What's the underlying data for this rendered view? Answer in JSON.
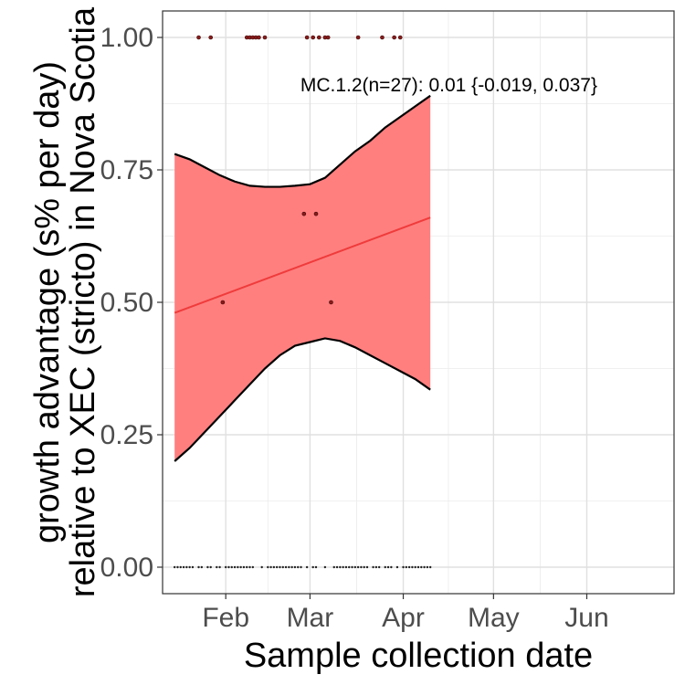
{
  "chart_data": {
    "type": "scatter",
    "title": "",
    "xlabel": "Sample collection date",
    "ylabel_lines": [
      "growth advantage (s% per day)",
      "relative to XEC (stricto) in Nova Scotia"
    ],
    "x_axis_type": "date",
    "xlim": [
      "2025-01-11",
      "2025-06-30"
    ],
    "ylim": [
      -0.05,
      1.05
    ],
    "x_ticks": [
      {
        "date": "2025-02-01",
        "label": "Feb"
      },
      {
        "date": "2025-03-01",
        "label": "Mar"
      },
      {
        "date": "2025-04-01",
        "label": "Apr"
      },
      {
        "date": "2025-05-01",
        "label": "May"
      },
      {
        "date": "2025-06-01",
        "label": "Jun"
      }
    ],
    "y_ticks": [
      {
        "value": 0.0,
        "label": "0.00"
      },
      {
        "value": 0.25,
        "label": "0.25"
      },
      {
        "value": 0.5,
        "label": "0.50"
      },
      {
        "value": 0.75,
        "label": "0.75"
      },
      {
        "value": 1.0,
        "label": "1.00"
      }
    ],
    "grid": true,
    "annotation": {
      "text": "MC.1.2(n=27): 0.01 {-0.019, 0.037}",
      "x": "2025-03-01",
      "y": 0.91
    },
    "fit_line": {
      "color": "#f03b3b",
      "points": [
        {
          "date": "2025-01-15",
          "y": 0.48
        },
        {
          "date": "2025-04-10",
          "y": 0.66
        }
      ]
    },
    "confidence_band": {
      "fill": "#ff7f7f",
      "stroke": "#000000",
      "upper": [
        {
          "date": "2025-01-15",
          "y": 0.78
        },
        {
          "date": "2025-01-20",
          "y": 0.77
        },
        {
          "date": "2025-01-25",
          "y": 0.755
        },
        {
          "date": "2025-01-30",
          "y": 0.74
        },
        {
          "date": "2025-02-04",
          "y": 0.728
        },
        {
          "date": "2025-02-09",
          "y": 0.72
        },
        {
          "date": "2025-02-14",
          "y": 0.718
        },
        {
          "date": "2025-02-19",
          "y": 0.718
        },
        {
          "date": "2025-02-24",
          "y": 0.72
        },
        {
          "date": "2025-03-01",
          "y": 0.723
        },
        {
          "date": "2025-03-06",
          "y": 0.735
        },
        {
          "date": "2025-03-11",
          "y": 0.76
        },
        {
          "date": "2025-03-16",
          "y": 0.785
        },
        {
          "date": "2025-03-21",
          "y": 0.805
        },
        {
          "date": "2025-03-26",
          "y": 0.83
        },
        {
          "date": "2025-03-31",
          "y": 0.85
        },
        {
          "date": "2025-04-05",
          "y": 0.87
        },
        {
          "date": "2025-04-10",
          "y": 0.89
        }
      ],
      "lower": [
        {
          "date": "2025-01-15",
          "y": 0.2
        },
        {
          "date": "2025-01-20",
          "y": 0.225
        },
        {
          "date": "2025-01-25",
          "y": 0.255
        },
        {
          "date": "2025-01-30",
          "y": 0.285
        },
        {
          "date": "2025-02-04",
          "y": 0.315
        },
        {
          "date": "2025-02-09",
          "y": 0.345
        },
        {
          "date": "2025-02-14",
          "y": 0.375
        },
        {
          "date": "2025-02-19",
          "y": 0.4
        },
        {
          "date": "2025-02-24",
          "y": 0.418
        },
        {
          "date": "2025-03-01",
          "y": 0.425
        },
        {
          "date": "2025-03-06",
          "y": 0.432
        },
        {
          "date": "2025-03-11",
          "y": 0.427
        },
        {
          "date": "2025-03-16",
          "y": 0.415
        },
        {
          "date": "2025-03-21",
          "y": 0.4
        },
        {
          "date": "2025-03-26",
          "y": 0.385
        },
        {
          "date": "2025-03-31",
          "y": 0.37
        },
        {
          "date": "2025-04-05",
          "y": 0.355
        },
        {
          "date": "2025-04-10",
          "y": 0.335
        }
      ]
    },
    "series": [
      {
        "name": "",
        "color": "#8b1a1a",
        "points": [
          {
            "date": "2025-01-23",
            "y": 1.0
          },
          {
            "date": "2025-01-27",
            "y": 1.0
          },
          {
            "date": "2025-02-08",
            "y": 1.0
          },
          {
            "date": "2025-02-09",
            "y": 1.0
          },
          {
            "date": "2025-02-10",
            "y": 1.0
          },
          {
            "date": "2025-02-11",
            "y": 1.0
          },
          {
            "date": "2025-02-12",
            "y": 1.0
          },
          {
            "date": "2025-02-14",
            "y": 1.0
          },
          {
            "date": "2025-02-28",
            "y": 1.0
          },
          {
            "date": "2025-03-02",
            "y": 1.0
          },
          {
            "date": "2025-03-04",
            "y": 1.0
          },
          {
            "date": "2025-03-06",
            "y": 1.0
          },
          {
            "date": "2025-03-07",
            "y": 1.0
          },
          {
            "date": "2025-03-17",
            "y": 1.0
          },
          {
            "date": "2025-03-25",
            "y": 1.0
          },
          {
            "date": "2025-03-29",
            "y": 1.0
          },
          {
            "date": "2025-03-31",
            "y": 1.0
          },
          {
            "date": "2025-02-27",
            "y": 0.667
          },
          {
            "date": "2025-03-03",
            "y": 0.667
          },
          {
            "date": "2025-01-31",
            "y": 0.5
          },
          {
            "date": "2025-03-08",
            "y": 0.5
          },
          {
            "date": "2025-01-15",
            "y": 0.0
          },
          {
            "date": "2025-01-16",
            "y": 0.0
          },
          {
            "date": "2025-01-17",
            "y": 0.0
          },
          {
            "date": "2025-01-18",
            "y": 0.0
          },
          {
            "date": "2025-01-19",
            "y": 0.0
          },
          {
            "date": "2025-01-20",
            "y": 0.0
          },
          {
            "date": "2025-01-21",
            "y": 0.0
          },
          {
            "date": "2025-01-23",
            "y": 0.0
          },
          {
            "date": "2025-01-24",
            "y": 0.0
          },
          {
            "date": "2025-01-26",
            "y": 0.0
          },
          {
            "date": "2025-01-27",
            "y": 0.0
          },
          {
            "date": "2025-01-29",
            "y": 0.0
          },
          {
            "date": "2025-01-30",
            "y": 0.0
          },
          {
            "date": "2025-02-01",
            "y": 0.0
          },
          {
            "date": "2025-02-02",
            "y": 0.0
          },
          {
            "date": "2025-02-03",
            "y": 0.0
          },
          {
            "date": "2025-02-04",
            "y": 0.0
          },
          {
            "date": "2025-02-05",
            "y": 0.0
          },
          {
            "date": "2025-02-06",
            "y": 0.0
          },
          {
            "date": "2025-02-07",
            "y": 0.0
          },
          {
            "date": "2025-02-08",
            "y": 0.0
          },
          {
            "date": "2025-02-09",
            "y": 0.0
          },
          {
            "date": "2025-02-10",
            "y": 0.0
          },
          {
            "date": "2025-02-13",
            "y": 0.0
          },
          {
            "date": "2025-02-15",
            "y": 0.0
          },
          {
            "date": "2025-02-16",
            "y": 0.0
          },
          {
            "date": "2025-02-17",
            "y": 0.0
          },
          {
            "date": "2025-02-18",
            "y": 0.0
          },
          {
            "date": "2025-02-19",
            "y": 0.0
          },
          {
            "date": "2025-02-20",
            "y": 0.0
          },
          {
            "date": "2025-02-21",
            "y": 0.0
          },
          {
            "date": "2025-02-22",
            "y": 0.0
          },
          {
            "date": "2025-02-23",
            "y": 0.0
          },
          {
            "date": "2025-02-24",
            "y": 0.0
          },
          {
            "date": "2025-02-25",
            "y": 0.0
          },
          {
            "date": "2025-02-26",
            "y": 0.0
          },
          {
            "date": "2025-02-28",
            "y": 0.0
          },
          {
            "date": "2025-03-02",
            "y": 0.0
          },
          {
            "date": "2025-03-03",
            "y": 0.0
          },
          {
            "date": "2025-03-06",
            "y": 0.0
          },
          {
            "date": "2025-03-09",
            "y": 0.0
          },
          {
            "date": "2025-03-10",
            "y": 0.0
          },
          {
            "date": "2025-03-11",
            "y": 0.0
          },
          {
            "date": "2025-03-12",
            "y": 0.0
          },
          {
            "date": "2025-03-13",
            "y": 0.0
          },
          {
            "date": "2025-03-14",
            "y": 0.0
          },
          {
            "date": "2025-03-15",
            "y": 0.0
          },
          {
            "date": "2025-03-16",
            "y": 0.0
          },
          {
            "date": "2025-03-17",
            "y": 0.0
          },
          {
            "date": "2025-03-18",
            "y": 0.0
          },
          {
            "date": "2025-03-19",
            "y": 0.0
          },
          {
            "date": "2025-03-20",
            "y": 0.0
          },
          {
            "date": "2025-03-22",
            "y": 0.0
          },
          {
            "date": "2025-03-23",
            "y": 0.0
          },
          {
            "date": "2025-03-24",
            "y": 0.0
          },
          {
            "date": "2025-03-26",
            "y": 0.0
          },
          {
            "date": "2025-03-27",
            "y": 0.0
          },
          {
            "date": "2025-03-28",
            "y": 0.0
          },
          {
            "date": "2025-03-30",
            "y": 0.0
          },
          {
            "date": "2025-04-01",
            "y": 0.0
          },
          {
            "date": "2025-04-02",
            "y": 0.0
          },
          {
            "date": "2025-04-03",
            "y": 0.0
          },
          {
            "date": "2025-04-04",
            "y": 0.0
          },
          {
            "date": "2025-04-05",
            "y": 0.0
          },
          {
            "date": "2025-04-06",
            "y": 0.0
          },
          {
            "date": "2025-04-07",
            "y": 0.0
          },
          {
            "date": "2025-04-08",
            "y": 0.0
          },
          {
            "date": "2025-04-09",
            "y": 0.0
          },
          {
            "date": "2025-04-10",
            "y": 0.0
          }
        ]
      }
    ]
  }
}
